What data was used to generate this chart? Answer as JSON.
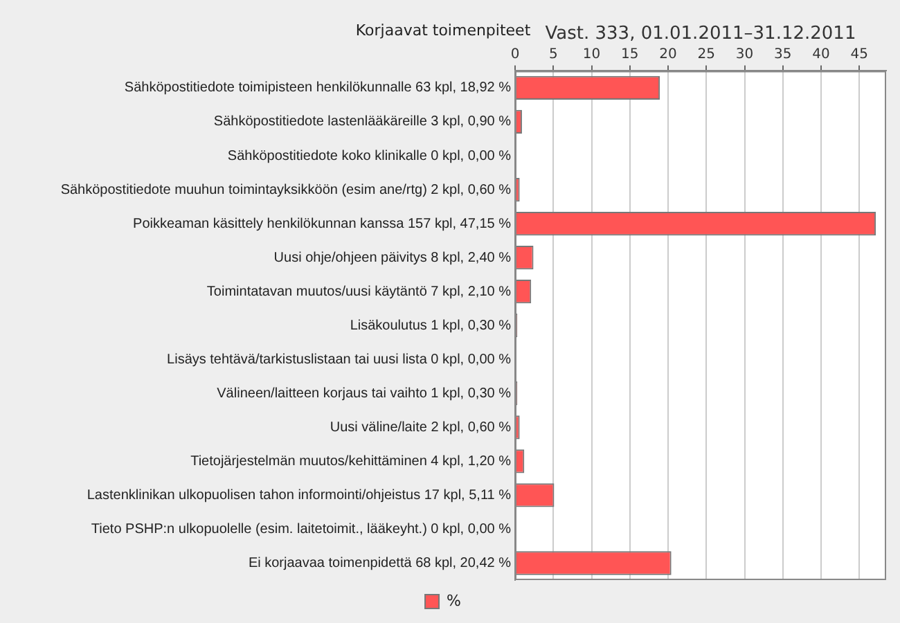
{
  "chart_data": {
    "type": "bar",
    "orientation": "horizontal",
    "title": "Korjaavat toimenpiteet",
    "subtitle": "Vast. 333, 01.01.2011–31.12.2011",
    "categories": [
      "Sähköpostitiedote toimipisteen henkilökunnalle 63 kpl, 18,92 %",
      "Sähköpostitiedote lastenlääkäreille 3 kpl, 0,90 %",
      "Sähköpostitiedote koko klinikalle 0 kpl, 0,00 %",
      "Sähköpostitiedote muuhun toimintayksikköön (esim ane/rtg) 2 kpl, 0,60 %",
      "Poikkeaman käsittely henkilökunnan kanssa 157 kpl, 47,15 %",
      "Uusi ohje/ohjeen päivitys 8 kpl, 2,40 %",
      "Toimintatavan muutos/uusi käytäntö 7 kpl, 2,10 %",
      "Lisäkoulutus 1 kpl, 0,30 %",
      "Lisäys tehtävä/tarkistuslistaan tai uusi lista 0 kpl, 0,00 %",
      "Välineen/laitteen korjaus tai vaihto 1 kpl, 0,30 %",
      "Uusi väline/laite 2 kpl, 0,60 %",
      "Tietojärjestelmän muutos/kehittäminen 4 kpl, 1,20 %",
      "Lastenklinikan ulkopuolisen tahon informointi/ohjeistus 17 kpl, 5,11 %",
      "Tieto PSHP:n ulkopuolelle (esim. laitetoimit., lääkeyht.) 0 kpl, 0,00 %",
      "Ei korjaavaa toimenpidettä 68 kpl, 20,42 %"
    ],
    "series": [
      {
        "name": "%",
        "color": "#ff5555",
        "values": [
          18.92,
          0.9,
          0,
          0.6,
          47.15,
          2.4,
          2.1,
          0.3,
          0,
          0.3,
          0.6,
          1.2,
          5.11,
          0,
          20.42
        ]
      }
    ],
    "xlim": [
      0,
      48.5
    ],
    "xticks": [
      0,
      5,
      10,
      15,
      20,
      25,
      30,
      35,
      40,
      45
    ],
    "grid": "x",
    "legend": "bottom"
  }
}
